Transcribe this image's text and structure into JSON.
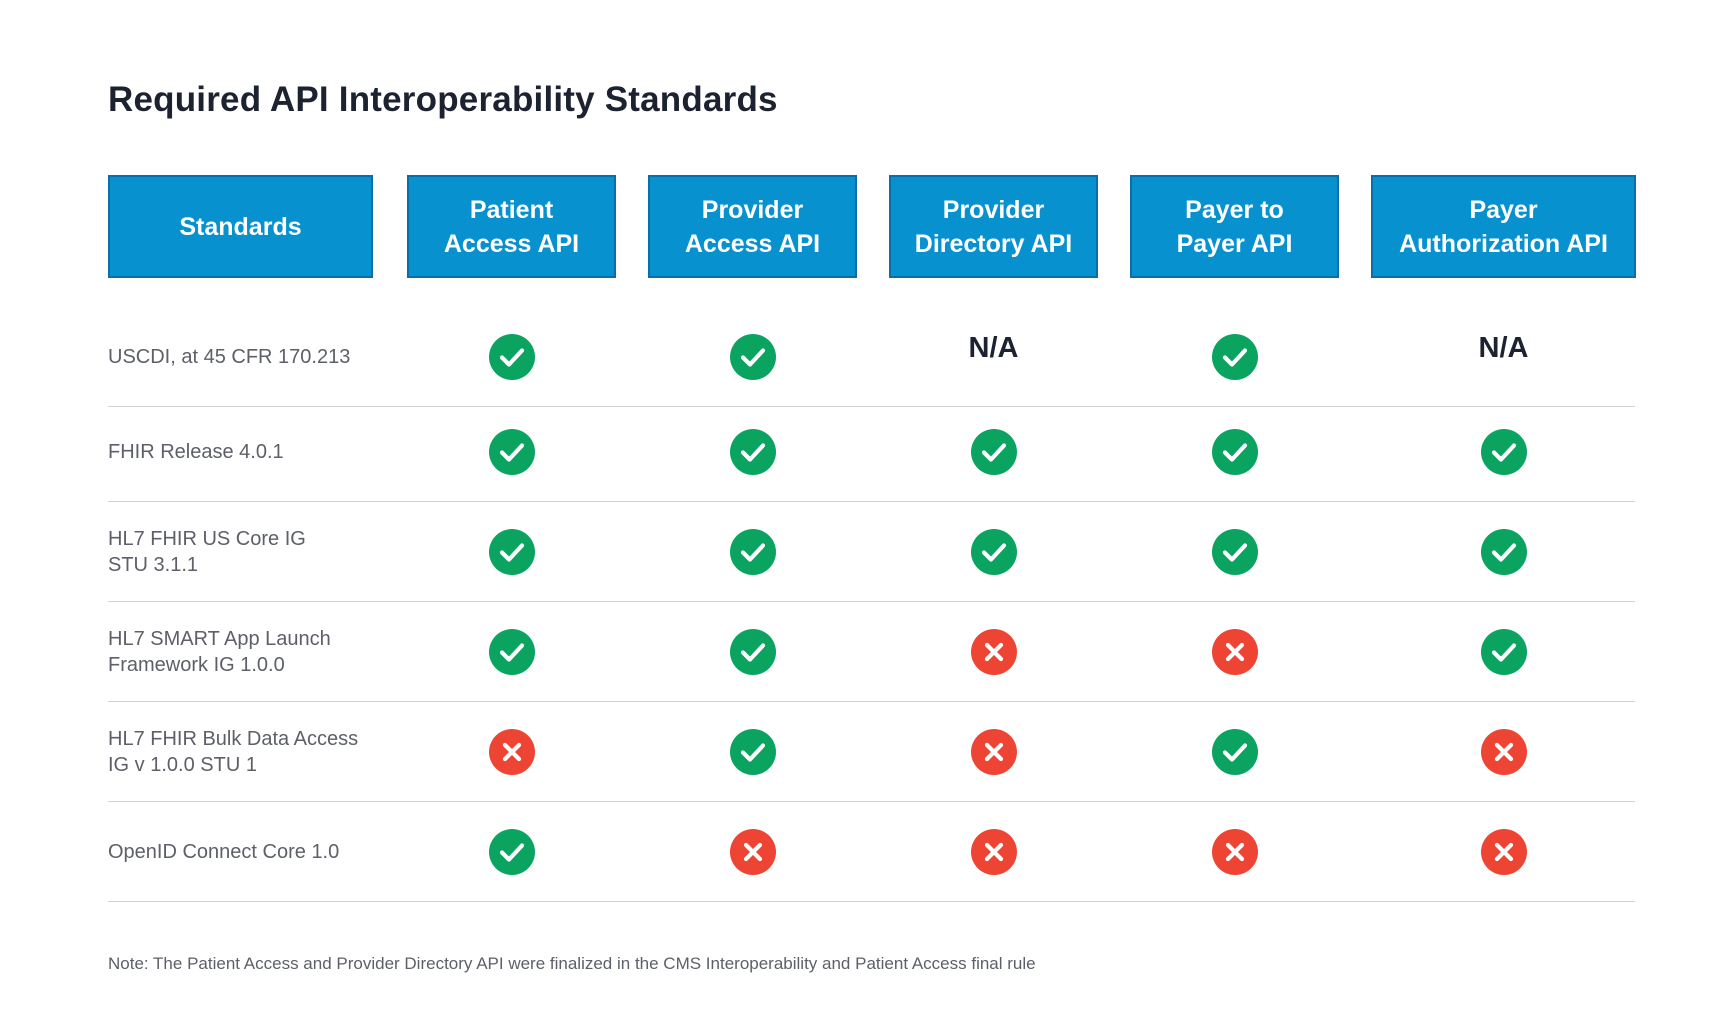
{
  "title": "Required API Interoperability Standards",
  "columns": [
    {
      "id": "standards",
      "label": "Standards"
    },
    {
      "id": "patient-access-api",
      "label": "Patient\nAccess API"
    },
    {
      "id": "provider-access-api",
      "label": "Provider\nAccess API"
    },
    {
      "id": "provider-directory-api",
      "label": "Provider\nDirectory API"
    },
    {
      "id": "payer-to-payer-api",
      "label": "Payer to\nPayer API"
    },
    {
      "id": "payer-authorization-api",
      "label": "Payer\nAuthorization API"
    }
  ],
  "rows": [
    {
      "label": "USCDI, at 45 CFR 170.213",
      "values": [
        "check",
        "check",
        "N/A",
        "check",
        "N/A"
      ]
    },
    {
      "label": "FHIR Release 4.0.1",
      "values": [
        "check",
        "check",
        "check",
        "check",
        "check"
      ]
    },
    {
      "label": "HL7 FHIR US Core IG\nSTU 3.1.1",
      "values": [
        "check",
        "check",
        "check",
        "check",
        "check"
      ]
    },
    {
      "label": "HL7 SMART App Launch\nFramework IG 1.0.0",
      "values": [
        "check",
        "check",
        "cross",
        "cross",
        "check"
      ]
    },
    {
      "label": "HL7 FHIR Bulk Data Access\nIG v 1.0.0 STU 1",
      "values": [
        "cross",
        "check",
        "cross",
        "check",
        "cross"
      ]
    },
    {
      "label": "OpenID Connect Core 1.0",
      "values": [
        "check",
        "cross",
        "cross",
        "cross",
        "cross"
      ]
    }
  ],
  "icons": {
    "check": "check-circle-icon",
    "cross": "cross-circle-icon"
  },
  "colors": {
    "header_bg": "#0891cf",
    "header_border": "#0a6ea8",
    "check": "#0aa35f",
    "cross": "#ee4433"
  },
  "note": "Note: The Patient Access and Provider Directory API were finalized in the CMS Interoperability and Patient Access final rule"
}
